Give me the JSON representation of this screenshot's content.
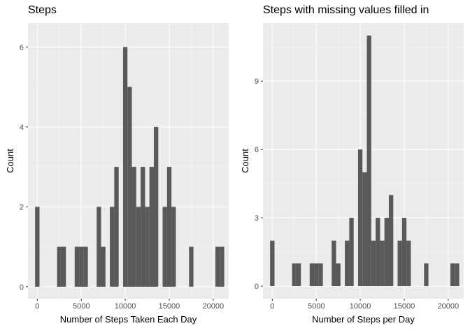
{
  "chart_data": [
    {
      "type": "bar",
      "title": "Steps",
      "xlabel": "Number of Steps Taken Each Day",
      "ylabel": "Count",
      "xlim": [
        -1060,
        21760
      ],
      "ylim": [
        -0.3,
        6.6
      ],
      "bin_width": 500,
      "x_ticks": [
        0,
        5000,
        10000,
        15000,
        20000
      ],
      "x_tick_labels": [
        "0",
        "5000",
        "10000",
        "15000",
        "20000"
      ],
      "y_ticks": [
        0,
        2,
        4,
        6
      ],
      "y_tick_labels": [
        "0",
        "2",
        "4",
        "6"
      ],
      "x": [
        0,
        2500,
        3000,
        4500,
        5000,
        5500,
        7000,
        7500,
        8500,
        9000,
        10000,
        10500,
        11000,
        11500,
        12000,
        12500,
        13000,
        13500,
        14500,
        15000,
        15500,
        17500,
        20500,
        21000
      ],
      "values": [
        2,
        1,
        1,
        1,
        1,
        1,
        2,
        1,
        2,
        3,
        6,
        5,
        3,
        2,
        3,
        2,
        3,
        4,
        2,
        3,
        2,
        1,
        1,
        1
      ],
      "bar_color": "#595959",
      "panel_background": "#ebebeb",
      "grid": true
    },
    {
      "type": "bar",
      "title": "Steps with missing values filled in",
      "xlabel": "Number of Steps per Day",
      "ylabel": "Count",
      "xlim": [
        -1060,
        21760
      ],
      "ylim": [
        -0.55,
        11.55
      ],
      "bin_width": 500,
      "x_ticks": [
        0,
        5000,
        10000,
        15000,
        20000
      ],
      "x_tick_labels": [
        "0",
        "5000",
        "10000",
        "15000",
        "20000"
      ],
      "y_ticks": [
        0,
        3,
        6,
        9
      ],
      "y_tick_labels": [
        "0",
        "3",
        "6",
        "9"
      ],
      "x": [
        0,
        2500,
        3000,
        4500,
        5000,
        5500,
        7000,
        7500,
        8500,
        9000,
        10000,
        10500,
        11000,
        11500,
        12000,
        12500,
        13000,
        13500,
        14500,
        15000,
        15500,
        17500,
        20500,
        21000
      ],
      "values": [
        2,
        1,
        1,
        1,
        1,
        1,
        2,
        1,
        2,
        3,
        6,
        5,
        11,
        2,
        3,
        2,
        3,
        4,
        2,
        3,
        2,
        1,
        1,
        1
      ],
      "bar_color": "#595959",
      "panel_background": "#ebebeb",
      "grid": true
    }
  ]
}
